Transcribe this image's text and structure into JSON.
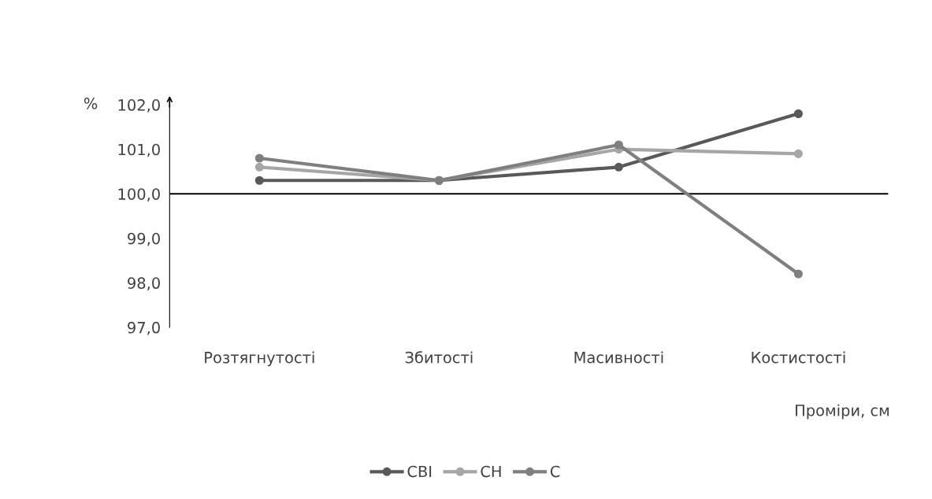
{
  "chart_data": {
    "type": "line",
    "ylabel": "%",
    "xlabel": "Проміри, см",
    "categories": [
      "Розтягнутості",
      "Збитості",
      "Масивності",
      "Костистості"
    ],
    "series": [
      {
        "name": "СВІ",
        "color": "#595959",
        "values": [
          100.3,
          100.3,
          100.6,
          101.8
        ]
      },
      {
        "name": "СН",
        "color": "#a6a6a6",
        "values": [
          100.6,
          100.3,
          101.0,
          100.9
        ]
      },
      {
        "name": "С",
        "color": "#7f7f7f",
        "values": [
          100.8,
          100.3,
          101.1,
          98.2
        ]
      }
    ],
    "ylim": [
      97,
      102
    ],
    "yticks": [
      {
        "value": 97,
        "label": "97,0"
      },
      {
        "value": 98,
        "label": "98,0"
      },
      {
        "value": 99,
        "label": "99,0"
      },
      {
        "value": 100,
        "label": "100,0"
      },
      {
        "value": 101,
        "label": "101,0"
      },
      {
        "value": 102,
        "label": "102,0"
      }
    ],
    "ref_lines": [
      {
        "axis": "y",
        "value": 100,
        "color": "#000000"
      }
    ],
    "marker": "circle",
    "line_style": "solid",
    "grid": false,
    "legend": "bottom"
  }
}
